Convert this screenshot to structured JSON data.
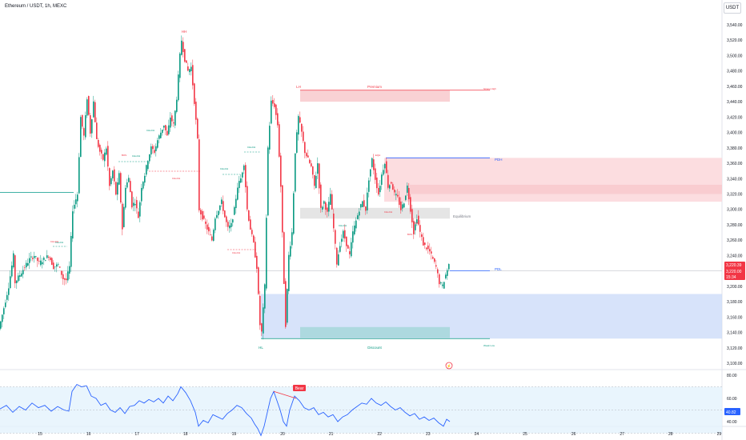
{
  "header": {
    "title": "Ethereum / USDT, 1h, MEXC",
    "currency_button": "USDT"
  },
  "colors": {
    "up": "#089981",
    "down": "#f23645",
    "rsi_line": "#2962ff",
    "premium_zone": "#f8c9cd",
    "discount_zone": "#c9daf8",
    "equilibrium_zone": "#e0e0e0",
    "discount_inner": "#a6d7d9",
    "supply_zone": "#fbd7da"
  },
  "chart_data": {
    "type": "candlestick",
    "x_axis_labels": [
      "15",
      "16",
      "17",
      "18",
      "19",
      "20",
      "21",
      "22",
      "23",
      "24",
      "25",
      "26",
      "27",
      "28",
      "29"
    ],
    "y_range": [
      3100,
      3550
    ],
    "y_ticks": [
      "3,540.00",
      "3,520.00",
      "3,500.00",
      "3,480.00",
      "3,460.00",
      "3,440.00",
      "3,420.00",
      "3,400.00",
      "3,380.00",
      "3,360.00",
      "3,340.00",
      "3,320.00",
      "3,300.00",
      "3,280.00",
      "3,260.00",
      "3,240.00",
      "3,220.00",
      "3,200.00",
      "3,180.00",
      "3,160.00",
      "3,140.00",
      "3,120.00",
      "3,100.00"
    ],
    "price_labels": {
      "last_price": "3,220.39",
      "mark_price": "3,220.00",
      "countdown": "15:34"
    },
    "price_path": [
      [
        0,
        3145
      ],
      [
        6,
        3172
      ],
      [
        12,
        3200
      ],
      [
        18,
        3240
      ],
      [
        20,
        3205
      ],
      [
        26,
        3215
      ],
      [
        32,
        3225
      ],
      [
        38,
        3235
      ],
      [
        44,
        3240
      ],
      [
        50,
        3230
      ],
      [
        56,
        3235
      ],
      [
        62,
        3240
      ],
      [
        68,
        3225
      ],
      [
        74,
        3228
      ],
      [
        80,
        3210
      ],
      [
        84,
        3208
      ],
      [
        88,
        3225
      ],
      [
        92,
        3300
      ],
      [
        98,
        3320
      ],
      [
        102,
        3420
      ],
      [
        106,
        3395
      ],
      [
        110,
        3445
      ],
      [
        114,
        3400
      ],
      [
        118,
        3440
      ],
      [
        122,
        3390
      ],
      [
        126,
        3375
      ],
      [
        130,
        3365
      ],
      [
        134,
        3380
      ],
      [
        138,
        3330
      ],
      [
        142,
        3350
      ],
      [
        146,
        3320
      ],
      [
        150,
        3345
      ],
      [
        154,
        3275
      ],
      [
        158,
        3330
      ],
      [
        162,
        3340
      ],
      [
        166,
        3305
      ],
      [
        170,
        3310
      ],
      [
        174,
        3290
      ],
      [
        178,
        3330
      ],
      [
        182,
        3345
      ],
      [
        186,
        3365
      ],
      [
        190,
        3380
      ],
      [
        194,
        3375
      ],
      [
        198,
        3390
      ],
      [
        202,
        3400
      ],
      [
        206,
        3410
      ],
      [
        210,
        3395
      ],
      [
        214,
        3420
      ],
      [
        218,
        3410
      ],
      [
        222,
        3445
      ],
      [
        226,
        3500
      ],
      [
        228,
        3520
      ],
      [
        232,
        3495
      ],
      [
        236,
        3480
      ],
      [
        240,
        3485
      ],
      [
        244,
        3440
      ],
      [
        248,
        3390
      ],
      [
        250,
        3300
      ],
      [
        254,
        3290
      ],
      [
        258,
        3280
      ],
      [
        262,
        3270
      ],
      [
        266,
        3260
      ],
      [
        270,
        3290
      ],
      [
        274,
        3300
      ],
      [
        278,
        3310
      ],
      [
        282,
        3290
      ],
      [
        286,
        3275
      ],
      [
        290,
        3280
      ],
      [
        294,
        3300
      ],
      [
        298,
        3330
      ],
      [
        302,
        3340
      ],
      [
        306,
        3360
      ],
      [
        310,
        3300
      ],
      [
        314,
        3275
      ],
      [
        318,
        3255
      ],
      [
        322,
        3225
      ],
      [
        326,
        3150
      ],
      [
        328,
        3140
      ],
      [
        332,
        3200
      ],
      [
        336,
        3380
      ],
      [
        340,
        3440
      ],
      [
        344,
        3435
      ],
      [
        348,
        3410
      ],
      [
        352,
        3330
      ],
      [
        356,
        3205
      ],
      [
        358,
        3150
      ],
      [
        362,
        3240
      ],
      [
        366,
        3270
      ],
      [
        370,
        3375
      ],
      [
        374,
        3420
      ],
      [
        378,
        3400
      ],
      [
        382,
        3375
      ],
      [
        386,
        3365
      ],
      [
        390,
        3355
      ],
      [
        394,
        3330
      ],
      [
        398,
        3360
      ],
      [
        402,
        3300
      ],
      [
        406,
        3310
      ],
      [
        410,
        3295
      ],
      [
        414,
        3320
      ],
      [
        418,
        3275
      ],
      [
        422,
        3230
      ],
      [
        426,
        3255
      ],
      [
        430,
        3270
      ],
      [
        434,
        3255
      ],
      [
        438,
        3240
      ],
      [
        442,
        3270
      ],
      [
        446,
        3285
      ],
      [
        450,
        3300
      ],
      [
        454,
        3310
      ],
      [
        458,
        3300
      ],
      [
        462,
        3340
      ],
      [
        466,
        3365
      ],
      [
        470,
        3340
      ],
      [
        474,
        3320
      ],
      [
        478,
        3345
      ],
      [
        482,
        3362
      ],
      [
        486,
        3330
      ],
      [
        490,
        3335
      ],
      [
        494,
        3320
      ],
      [
        498,
        3315
      ],
      [
        502,
        3300
      ],
      [
        506,
        3310
      ],
      [
        510,
        3330
      ],
      [
        514,
        3300
      ],
      [
        518,
        3270
      ],
      [
        522,
        3290
      ],
      [
        526,
        3270
      ],
      [
        530,
        3255
      ],
      [
        534,
        3250
      ],
      [
        538,
        3245
      ],
      [
        542,
        3235
      ],
      [
        546,
        3225
      ],
      [
        550,
        3205
      ],
      [
        554,
        3200
      ],
      [
        558,
        3215
      ],
      [
        562,
        3228
      ]
    ],
    "zones": [
      {
        "kind": "premium",
        "x0": 375,
        "x1": 562,
        "y0": 3440,
        "y1": 3455
      },
      {
        "kind": "supply",
        "x0": 480,
        "x1": 932,
        "y0": 3310,
        "y1": 3367
      },
      {
        "kind": "supply-dark",
        "x0": 512,
        "x1": 932,
        "y0": 3320,
        "y1": 3332
      },
      {
        "kind": "equilibrium",
        "x0": 375,
        "x1": 562,
        "y0": 3288,
        "y1": 3302
      },
      {
        "kind": "discount",
        "x0": 326,
        "x1": 932,
        "y0": 3132,
        "y1": 3190
      },
      {
        "kind": "discount-inner",
        "x0": 375,
        "x1": 562,
        "y0": 3133,
        "y1": 3147
      }
    ],
    "level_lines": [
      {
        "label": "PDH",
        "x0": 482,
        "x1": 612,
        "y": 3367
      },
      {
        "label": "PDL",
        "x0": 562,
        "x1": 612,
        "y": 3220
      },
      {
        "label": "Strong High",
        "x0": 375,
        "x1": 612,
        "y": 3455
      },
      {
        "label": "Weak Low",
        "x0": 326,
        "x1": 612,
        "y": 3132
      }
    ],
    "annotations": {
      "hh": "HH",
      "lh": "LH",
      "hl": "HL",
      "premium": "Premium",
      "discount": "Discount",
      "equilibrium": "Equilibrium",
      "pdh": "PDH",
      "pdl": "PDL",
      "strong_high": "Strong High",
      "weak_low": "Weak Low",
      "choch": "CHoCH",
      "bos": "BOS",
      "eqh": "EQH"
    },
    "rsi": {
      "y_ticks": [
        "80.00",
        "60.00",
        "40.00"
      ],
      "value_label": "40.82",
      "signal_label": "Bear",
      "path": [
        [
          0,
          51
        ],
        [
          8,
          54
        ],
        [
          16,
          48
        ],
        [
          24,
          53
        ],
        [
          32,
          50
        ],
        [
          40,
          56
        ],
        [
          48,
          52
        ],
        [
          56,
          54
        ],
        [
          64,
          49
        ],
        [
          72,
          53
        ],
        [
          80,
          50
        ],
        [
          86,
          49
        ],
        [
          90,
          66
        ],
        [
          96,
          72
        ],
        [
          102,
          70
        ],
        [
          108,
          71
        ],
        [
          114,
          62
        ],
        [
          120,
          60
        ],
        [
          126,
          54
        ],
        [
          132,
          56
        ],
        [
          138,
          50
        ],
        [
          144,
          48
        ],
        [
          150,
          52
        ],
        [
          156,
          47
        ],
        [
          162,
          53
        ],
        [
          168,
          54
        ],
        [
          174,
          58
        ],
        [
          180,
          56
        ],
        [
          186,
          59
        ],
        [
          192,
          57
        ],
        [
          198,
          60
        ],
        [
          204,
          56
        ],
        [
          210,
          62
        ],
        [
          216,
          58
        ],
        [
          222,
          64
        ],
        [
          226,
          70
        ],
        [
          232,
          65
        ],
        [
          238,
          58
        ],
        [
          244,
          48
        ],
        [
          248,
          36
        ],
        [
          254,
          41
        ],
        [
          260,
          39
        ],
        [
          266,
          46
        ],
        [
          272,
          44
        ],
        [
          278,
          42
        ],
        [
          284,
          47
        ],
        [
          290,
          50
        ],
        [
          296,
          54
        ],
        [
          302,
          52
        ],
        [
          308,
          47
        ],
        [
          314,
          43
        ],
        [
          318,
          38
        ],
        [
          322,
          34
        ],
        [
          326,
          28
        ],
        [
          330,
          36
        ],
        [
          334,
          48
        ],
        [
          338,
          60
        ],
        [
          342,
          66
        ],
        [
          346,
          58
        ],
        [
          350,
          50
        ],
        [
          354,
          40
        ],
        [
          358,
          36
        ],
        [
          362,
          50
        ],
        [
          368,
          62
        ],
        [
          374,
          58
        ],
        [
          380,
          52
        ],
        [
          386,
          50
        ],
        [
          392,
          52
        ],
        [
          398,
          46
        ],
        [
          404,
          48
        ],
        [
          410,
          44
        ],
        [
          416,
          46
        ],
        [
          422,
          40
        ],
        [
          428,
          44
        ],
        [
          434,
          46
        ],
        [
          440,
          50
        ],
        [
          446,
          53
        ],
        [
          452,
          56
        ],
        [
          458,
          55
        ],
        [
          464,
          60
        ],
        [
          470,
          56
        ],
        [
          476,
          54
        ],
        [
          482,
          57
        ],
        [
          488,
          53
        ],
        [
          494,
          50
        ],
        [
          500,
          52
        ],
        [
          506,
          48
        ],
        [
          512,
          45
        ],
        [
          518,
          47
        ],
        [
          524,
          42
        ],
        [
          530,
          44
        ],
        [
          536,
          41
        ],
        [
          542,
          43
        ],
        [
          548,
          39
        ],
        [
          554,
          36
        ],
        [
          558,
          42
        ],
        [
          562,
          40
        ]
      ]
    }
  }
}
